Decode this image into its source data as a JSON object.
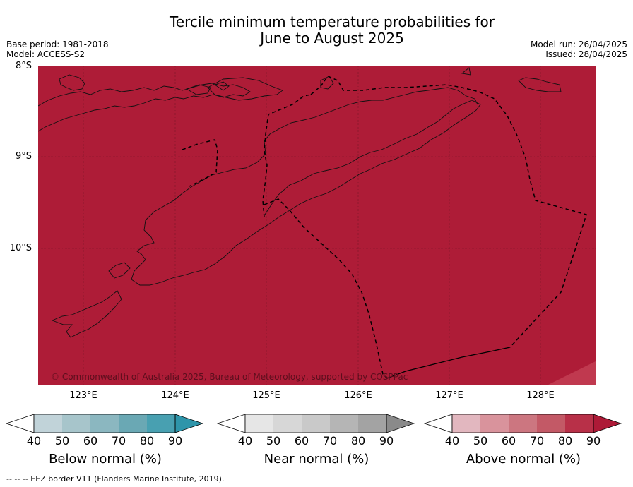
{
  "title_line1": "Tercile minimum temperature probabilities for",
  "title_line2": "June to August 2025",
  "meta_left": [
    "Base period: 1981-2018",
    "Model: ACCESS-S2"
  ],
  "meta_right": [
    "Model run: 26/04/2025",
    "Issued: 28/04/2025"
  ],
  "lat_labels": [
    "8°S",
    "9°S",
    "10°S"
  ],
  "lon_labels": [
    "123°E",
    "124°E",
    "125°E",
    "126°E",
    "127°E",
    "128°E"
  ],
  "copyright": "© Commonwealth of Australia 2025, Bureau of Meteorology, supported by COSPPac",
  "colorbars": [
    {
      "label": "Below normal (%)",
      "ticks": [
        "40",
        "50",
        "60",
        "70",
        "80",
        "90"
      ],
      "colors": [
        "#c1d3d9",
        "#a7c5cb",
        "#8bb7c0",
        "#6aa8b4",
        "#48a0b1",
        "#2e95aa"
      ]
    },
    {
      "label": "Near normal (%)",
      "ticks": [
        "40",
        "50",
        "60",
        "70",
        "80",
        "90"
      ],
      "colors": [
        "#e6e6e6",
        "#d7d7d7",
        "#c9c9c9",
        "#b5b5b5",
        "#a3a3a3",
        "#8a8a8a"
      ]
    },
    {
      "label": "Above normal (%)",
      "ticks": [
        "40",
        "50",
        "60",
        "70",
        "80",
        "90"
      ],
      "colors": [
        "#e2b7bf",
        "#d9939c",
        "#cc7680",
        "#c35966",
        "#b83048",
        "#ad1a37"
      ]
    }
  ],
  "footer": "--  --  -- EEZ border V11 (Flanders Marine Institute, 2019).",
  "colors": {
    "map_fill": "#ae1c37",
    "corner_fill": "#c0394f"
  }
}
